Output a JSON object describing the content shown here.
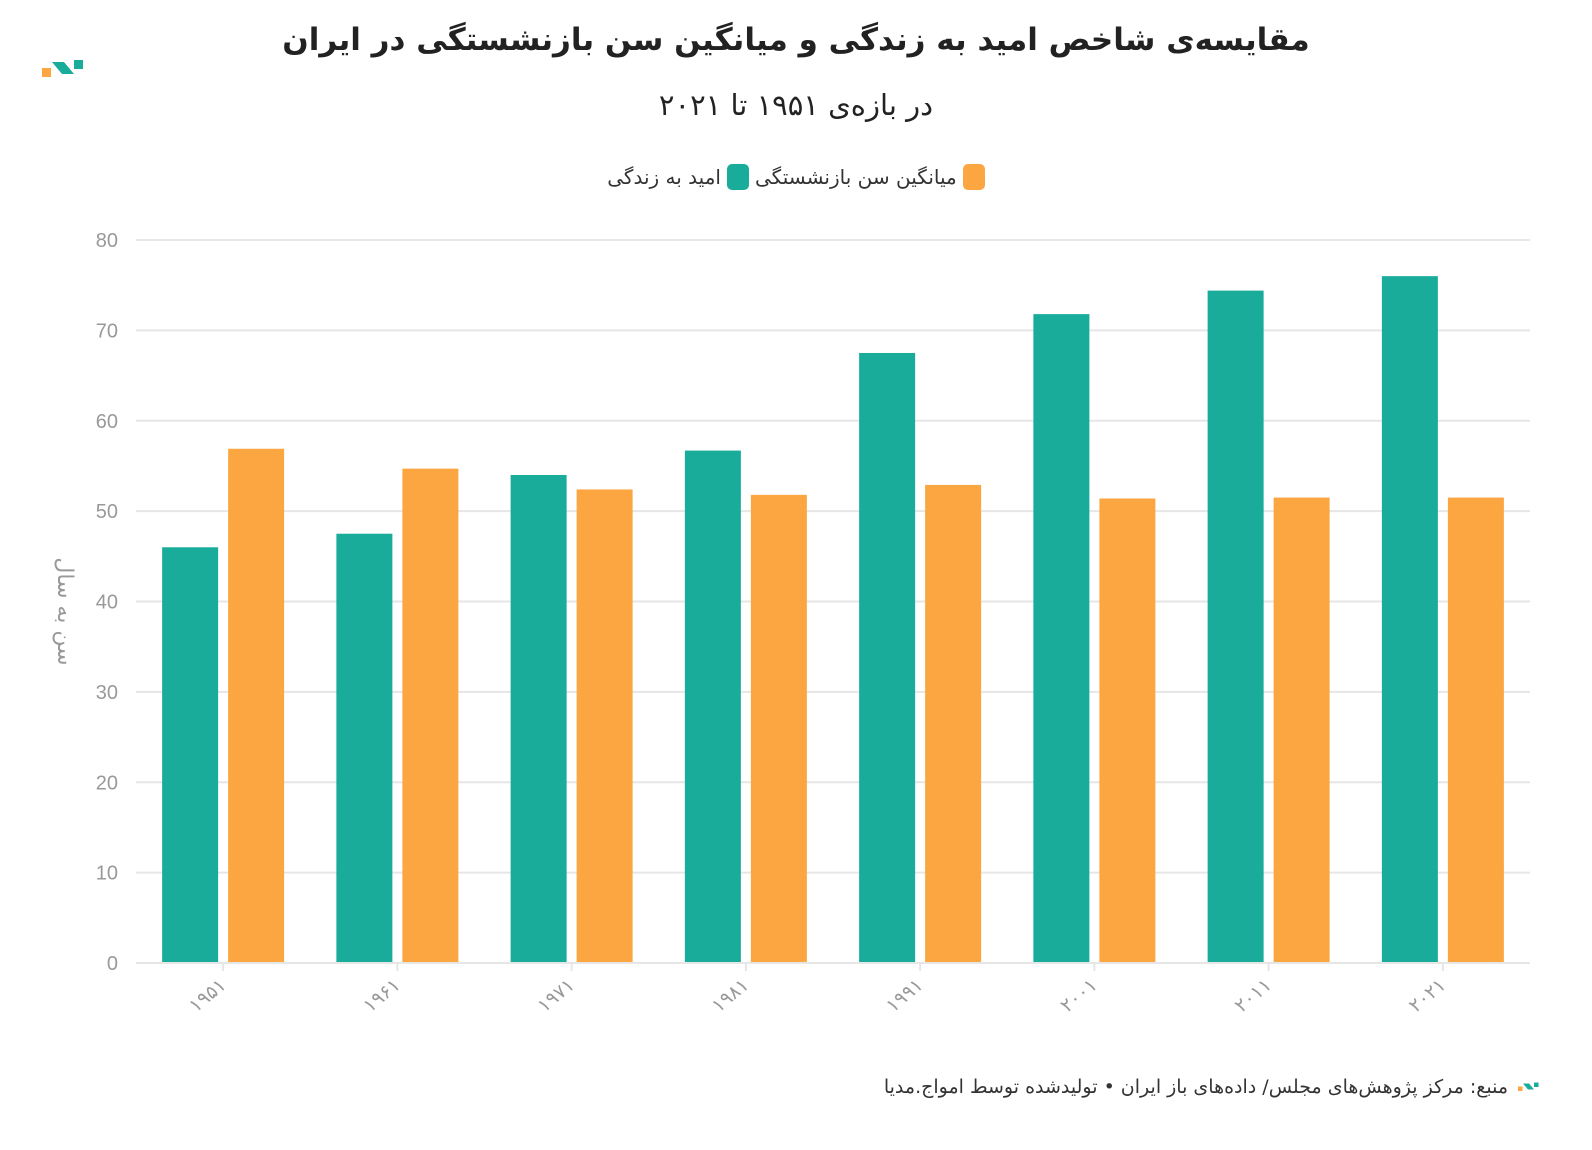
{
  "chart_data": {
    "type": "bar",
    "title": "مقایسه‌ی شاخص امید به زندگی و میانگین سن بازنشستگی در ایران",
    "subtitle": "در بازه‌ی ۱۹۵۱ تا ۲۰۲۱",
    "categories": [
      "۱۹۵۱",
      "۱۹۶۱",
      "۱۹۷۱",
      "۱۹۸۱",
      "۱۹۹۱",
      "۲۰۰۱",
      "۲۰۱۱",
      "۲۰۲۱"
    ],
    "series": [
      {
        "name": "امید به زندگی",
        "color": "#1aac9b",
        "values": [
          46.0,
          47.5,
          54.0,
          56.7,
          67.5,
          71.8,
          74.4,
          76.0
        ]
      },
      {
        "name": "میانگین سن بازنشستگی",
        "color": "#fca642",
        "values": [
          56.9,
          54.7,
          52.4,
          51.8,
          52.9,
          51.4,
          51.5,
          51.5
        ]
      }
    ],
    "ylabel": "سن به سال",
    "xlabel": "",
    "ylim": [
      0,
      80
    ],
    "yticks": [
      0,
      10,
      20,
      30,
      40,
      50,
      60,
      70,
      80
    ],
    "grid": true,
    "legend_position": "top-center"
  },
  "footer": {
    "text": "منبع: مرکز پژوهش‌های مجلس/ داده‌های باز ایران • تولیدشده توسط امواج.مدیا"
  },
  "colors": {
    "teal": "#1aac9b",
    "orange": "#fca642",
    "grid": "#e6e6e6",
    "axis_text": "#999999"
  }
}
